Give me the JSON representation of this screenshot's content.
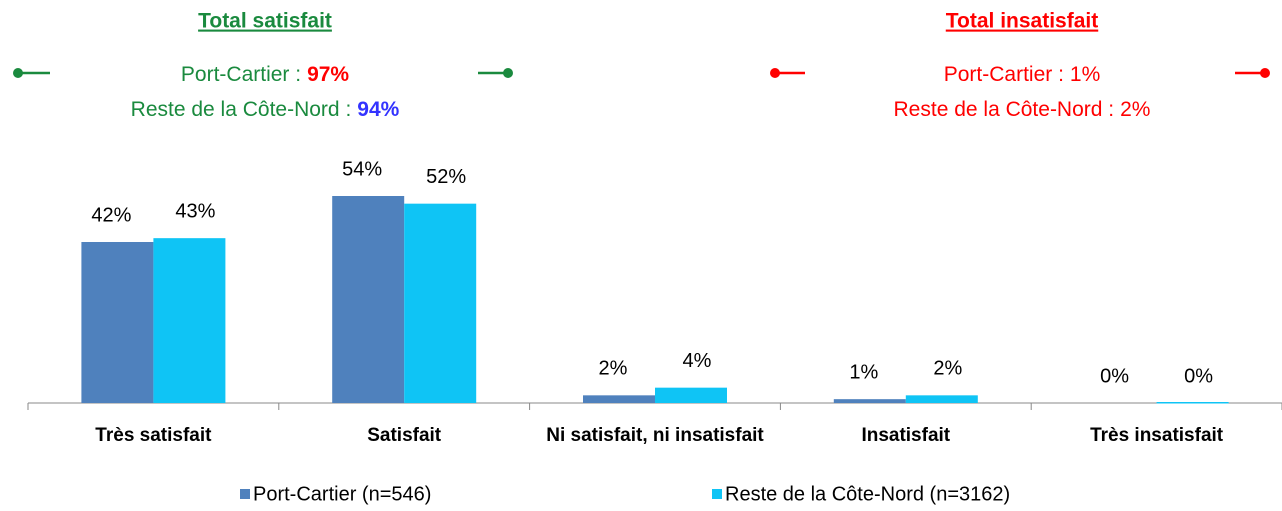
{
  "chart_data": {
    "type": "bar",
    "categories": [
      "Très satisfait",
      "Satisfait",
      "Ni satisfait, ni insatisfait",
      "Insatisfait",
      "Très insatisfait"
    ],
    "series": [
      {
        "name": "Port-Cartier (n=546)",
        "color": "#4f81bd",
        "values": [
          42,
          54,
          2,
          1,
          0
        ],
        "value_labels": [
          "42%",
          "54%",
          "2%",
          "1%",
          "0%"
        ]
      },
      {
        "name": "Reste de la Côte-Nord (n=3162)",
        "color": "#0fc4f5",
        "values": [
          43,
          52,
          4,
          2,
          0
        ],
        "value_labels": [
          "43%",
          "52%",
          "4%",
          "2%",
          "0%"
        ]
      }
    ],
    "ylim": [
      0,
      60
    ],
    "legend": "bottom",
    "annotations": [
      {
        "title": "Total satisfait",
        "color": "#1a8a3e",
        "lines": [
          {
            "label": "Port-Cartier :",
            "value": "97%",
            "value_color": "#ff0000"
          },
          {
            "label": "Reste de la Côte-Nord :",
            "value": "94%",
            "value_color": "#3333ff"
          }
        ]
      },
      {
        "title": "Total insatisfait",
        "color": "#ff0000",
        "lines": [
          {
            "label": "Port-Cartier :",
            "value": "1%",
            "value_color": "#ff0000"
          },
          {
            "label": "Reste de la Côte-Nord :",
            "value": "2%",
            "value_color": "#ff0000"
          }
        ]
      }
    ]
  }
}
